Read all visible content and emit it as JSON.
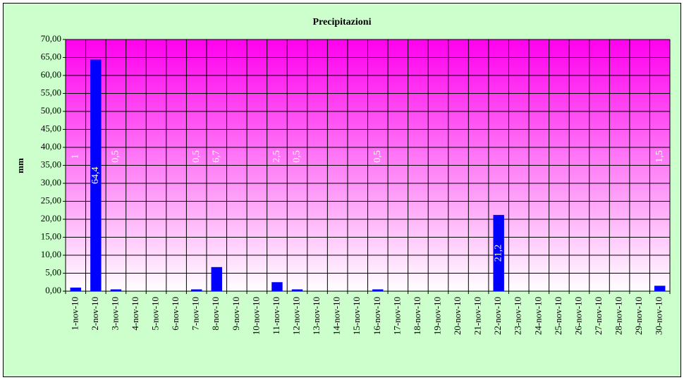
{
  "chart_data": {
    "type": "bar",
    "title": "Precipitazioni",
    "y_label": "mm",
    "categories": [
      "1-nov-10",
      "2-nov-10",
      "3-nov-10",
      "4-nov-10",
      "5-nov-10",
      "6-nov-10",
      "7-nov-10",
      "8-nov-10",
      "9-nov-10",
      "10-nov-10",
      "11-nov-10",
      "12-nov-10",
      "13-nov-10",
      "14-nov-10",
      "15-nov-10",
      "16-nov-10",
      "17-nov-10",
      "18-nov-10",
      "19-nov-10",
      "20-nov-10",
      "21-nov-10",
      "22-nov-10",
      "23-nov-10",
      "24-nov-10",
      "25-nov-10",
      "26-nov-10",
      "27-nov-10",
      "28-nov-10",
      "29-nov-10",
      "30-nov-10"
    ],
    "values": [
      1,
      64.4,
      0.5,
      null,
      null,
      null,
      0.5,
      6.7,
      null,
      null,
      2.5,
      0.5,
      null,
      null,
      null,
      0.5,
      null,
      null,
      null,
      null,
      null,
      21.2,
      null,
      null,
      null,
      null,
      null,
      null,
      null,
      1.5
    ],
    "value_labels": [
      "1",
      "64,4",
      "0,5",
      null,
      null,
      null,
      "0,5",
      "6,7",
      null,
      null,
      "2,5",
      "0,5",
      null,
      null,
      null,
      "0,5",
      null,
      null,
      null,
      null,
      null,
      "21,2",
      null,
      null,
      null,
      null,
      null,
      null,
      null,
      "1,5"
    ],
    "color": "#0000ff",
    "ylim": [
      0,
      70
    ],
    "yticks": [
      {
        "value": 0,
        "label": "0,00"
      },
      {
        "value": 5,
        "label": "5,00"
      },
      {
        "value": 10,
        "label": "10,00"
      },
      {
        "value": 15,
        "label": "15,00"
      },
      {
        "value": 20,
        "label": "20,00"
      },
      {
        "value": 25,
        "label": "25,00"
      },
      {
        "value": 30,
        "label": "30,00"
      },
      {
        "value": 35,
        "label": "35,00"
      },
      {
        "value": 40,
        "label": "40,00"
      },
      {
        "value": 45,
        "label": "45,00"
      },
      {
        "value": 50,
        "label": "50,00"
      },
      {
        "value": 55,
        "label": "55,00"
      },
      {
        "value": 60,
        "label": "60,00"
      },
      {
        "value": 65,
        "label": "65,00"
      },
      {
        "value": 70,
        "label": "70,00"
      }
    ],
    "grid": true
  }
}
